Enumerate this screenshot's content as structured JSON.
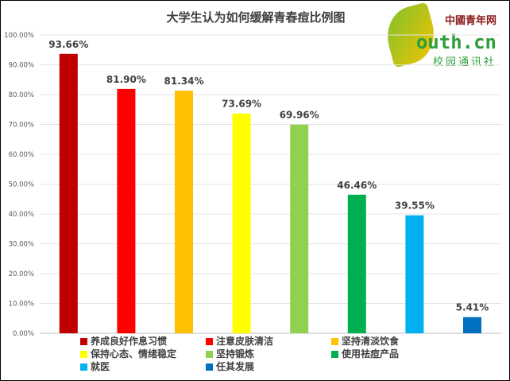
{
  "chart_data": {
    "type": "bar",
    "title": "大学生认为如何缓解青春痘比例图",
    "categories": [
      "养成良好作息习惯",
      "注意皮肤清洁",
      "坚持清淡饮食",
      "保持心态、情绪稳定",
      "坚持锻炼",
      "使用祛痘产品",
      "就医",
      "任其发展"
    ],
    "values": [
      93.66,
      81.9,
      81.34,
      73.69,
      69.96,
      46.46,
      39.55,
      5.41
    ],
    "data_labels": [
      "93.66%",
      "81.90%",
      "81.34%",
      "73.69%",
      "69.96%",
      "46.46%",
      "39.55%",
      "5.41%"
    ],
    "colors": [
      "#C00000",
      "#FF0000",
      "#FFC000",
      "#FFFF00",
      "#92D050",
      "#00B050",
      "#00B0F0",
      "#0070C0"
    ],
    "yticks": [
      "0.00%",
      "10.00%",
      "20.00%",
      "30.00%",
      "40.00%",
      "50.00%",
      "60.00%",
      "70.00%",
      "80.00%",
      "90.00%",
      "100.00%"
    ],
    "ylim": [
      0,
      100
    ],
    "grid": true,
    "legend": "bottom"
  },
  "logo": {
    "brand": "中國青年网",
    "url": "outh.cn",
    "sub": "校园通讯社"
  }
}
